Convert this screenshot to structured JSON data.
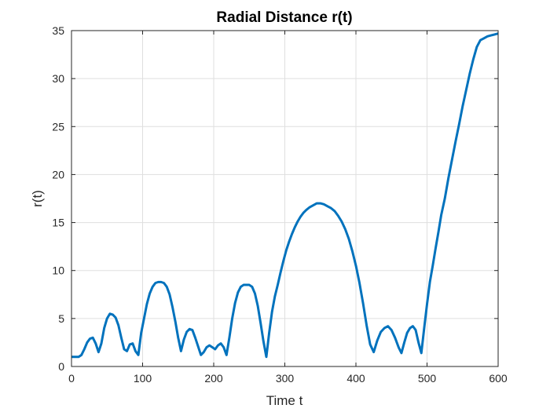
{
  "chart_data": {
    "type": "line",
    "title": "Radial Distance r(t)",
    "xlabel": "Time t",
    "ylabel": "r(t)",
    "xlim": [
      0,
      600
    ],
    "ylim": [
      0,
      35
    ],
    "xticks": [
      0,
      100,
      200,
      300,
      400,
      500,
      600
    ],
    "yticks": [
      0,
      5,
      10,
      15,
      20,
      25,
      30,
      35
    ],
    "grid": true,
    "color": "#0072BD",
    "series": [
      {
        "x": [
          0,
          5,
          10,
          14,
          18,
          22,
          26,
          30,
          34,
          38,
          42,
          46,
          50,
          54,
          58,
          62,
          66,
          70,
          74,
          78,
          82,
          86,
          90,
          94,
          98,
          102,
          106,
          110,
          114,
          118,
          122,
          126,
          130,
          134,
          138,
          142,
          146,
          150,
          154,
          158,
          162,
          166,
          170,
          174,
          178,
          182,
          186,
          190,
          194,
          198,
          202,
          206,
          210,
          214,
          218,
          222,
          226,
          230,
          234,
          238,
          242,
          246,
          250,
          254,
          258,
          262,
          266,
          270,
          274,
          278,
          282,
          286,
          290,
          294,
          298,
          302,
          306,
          310,
          314,
          318,
          322,
          326,
          330,
          335,
          340,
          345,
          350,
          355,
          360,
          365,
          370,
          375,
          380,
          385,
          390,
          395,
          400,
          405,
          410,
          415,
          420,
          425,
          430,
          435,
          440,
          445,
          450,
          455,
          460,
          464,
          468,
          472,
          476,
          480,
          484,
          488,
          492,
          496,
          500,
          504,
          508,
          512,
          516,
          520,
          525,
          530,
          535,
          540,
          545,
          550,
          555,
          560,
          565,
          570,
          575,
          580,
          585,
          590,
          595,
          600
        ],
        "y": [
          1.0,
          1.0,
          1.0,
          1.2,
          1.8,
          2.5,
          2.9,
          3.0,
          2.4,
          1.5,
          2.4,
          4.0,
          5.0,
          5.5,
          5.4,
          5.1,
          4.3,
          3.0,
          1.8,
          1.6,
          2.3,
          2.4,
          1.6,
          1.2,
          3.5,
          5.0,
          6.5,
          7.6,
          8.3,
          8.7,
          8.8,
          8.8,
          8.7,
          8.3,
          7.5,
          6.2,
          4.7,
          3.0,
          1.6,
          2.8,
          3.6,
          3.9,
          3.8,
          3.0,
          2.1,
          1.2,
          1.5,
          2.0,
          2.2,
          2.0,
          1.8,
          2.2,
          2.4,
          2.0,
          1.2,
          3.0,
          5.0,
          6.6,
          7.7,
          8.3,
          8.5,
          8.5,
          8.5,
          8.3,
          7.6,
          6.3,
          4.5,
          2.6,
          1.0,
          3.5,
          5.7,
          7.3,
          8.5,
          9.8,
          11.0,
          12.1,
          13.0,
          13.8,
          14.5,
          15.1,
          15.6,
          16.0,
          16.3,
          16.6,
          16.8,
          17.0,
          17.0,
          16.9,
          16.7,
          16.5,
          16.2,
          15.7,
          15.1,
          14.3,
          13.3,
          12.0,
          10.5,
          8.7,
          6.6,
          4.3,
          2.3,
          1.5,
          2.7,
          3.6,
          4.0,
          4.2,
          3.8,
          3.0,
          2.0,
          1.4,
          2.5,
          3.5,
          4.0,
          4.2,
          3.8,
          2.5,
          1.4,
          4.0,
          6.5,
          8.8,
          10.5,
          12.3,
          14.0,
          15.8,
          17.5,
          19.6,
          21.5,
          23.4,
          25.2,
          27.1,
          28.8,
          30.5,
          32.0,
          33.3,
          34.0,
          34.2,
          34.4,
          34.5,
          34.6,
          34.7
        ]
      }
    ]
  }
}
